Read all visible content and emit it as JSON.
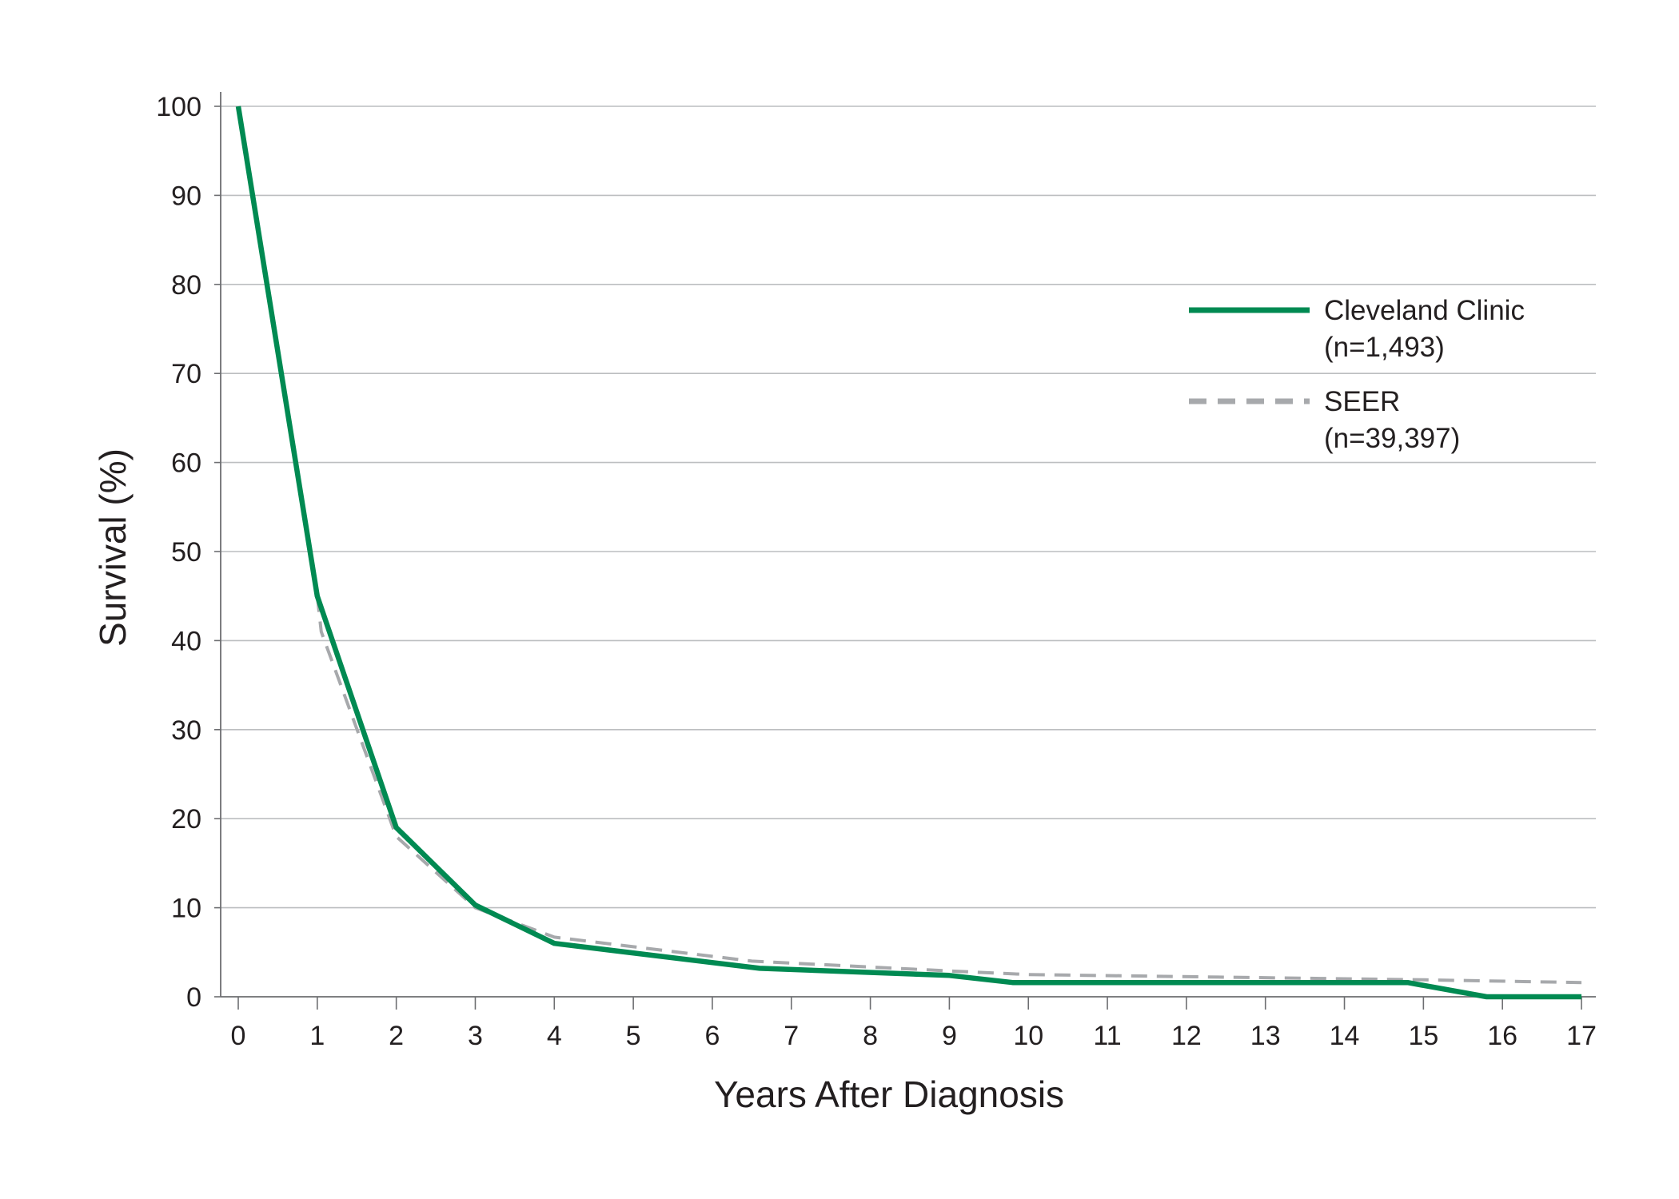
{
  "chart_data": {
    "type": "line",
    "title": "",
    "xlabel": "Years After Diagnosis",
    "ylabel": "Survival (%)",
    "xlim": [
      0,
      17
    ],
    "ylim": [
      0,
      100
    ],
    "x_ticks": [
      0,
      1,
      2,
      3,
      4,
      5,
      6,
      7,
      8,
      9,
      10,
      11,
      12,
      13,
      14,
      15,
      16,
      17
    ],
    "y_ticks": [
      0,
      10,
      20,
      30,
      40,
      50,
      60,
      70,
      80,
      90,
      100
    ],
    "grid": "horizontal",
    "legend_position": "upper-right",
    "series": [
      {
        "name": "Cleveland Clinic",
        "name_line2": "(n=1,493)",
        "style": "solid",
        "color": "#008a52",
        "points": [
          [
            0,
            100
          ],
          [
            1,
            45
          ],
          [
            2,
            19
          ],
          [
            3,
            10.3
          ],
          [
            4,
            6
          ],
          [
            6.6,
            3.2
          ],
          [
            9,
            2.4
          ],
          [
            9.8,
            1.6
          ],
          [
            14.8,
            1.6
          ],
          [
            15.8,
            0
          ],
          [
            17,
            0
          ]
        ]
      },
      {
        "name": "SEER",
        "name_line2": "(n=39,397)",
        "style": "dashed",
        "color": "#a7a9ac",
        "points": [
          [
            1,
            45
          ],
          [
            1.05,
            41
          ],
          [
            2,
            18
          ],
          [
            3,
            10
          ],
          [
            4,
            6.7
          ],
          [
            6.5,
            4
          ],
          [
            9,
            2.9
          ],
          [
            10,
            2.5
          ],
          [
            15,
            1.9
          ],
          [
            17,
            1.6
          ]
        ]
      }
    ]
  }
}
